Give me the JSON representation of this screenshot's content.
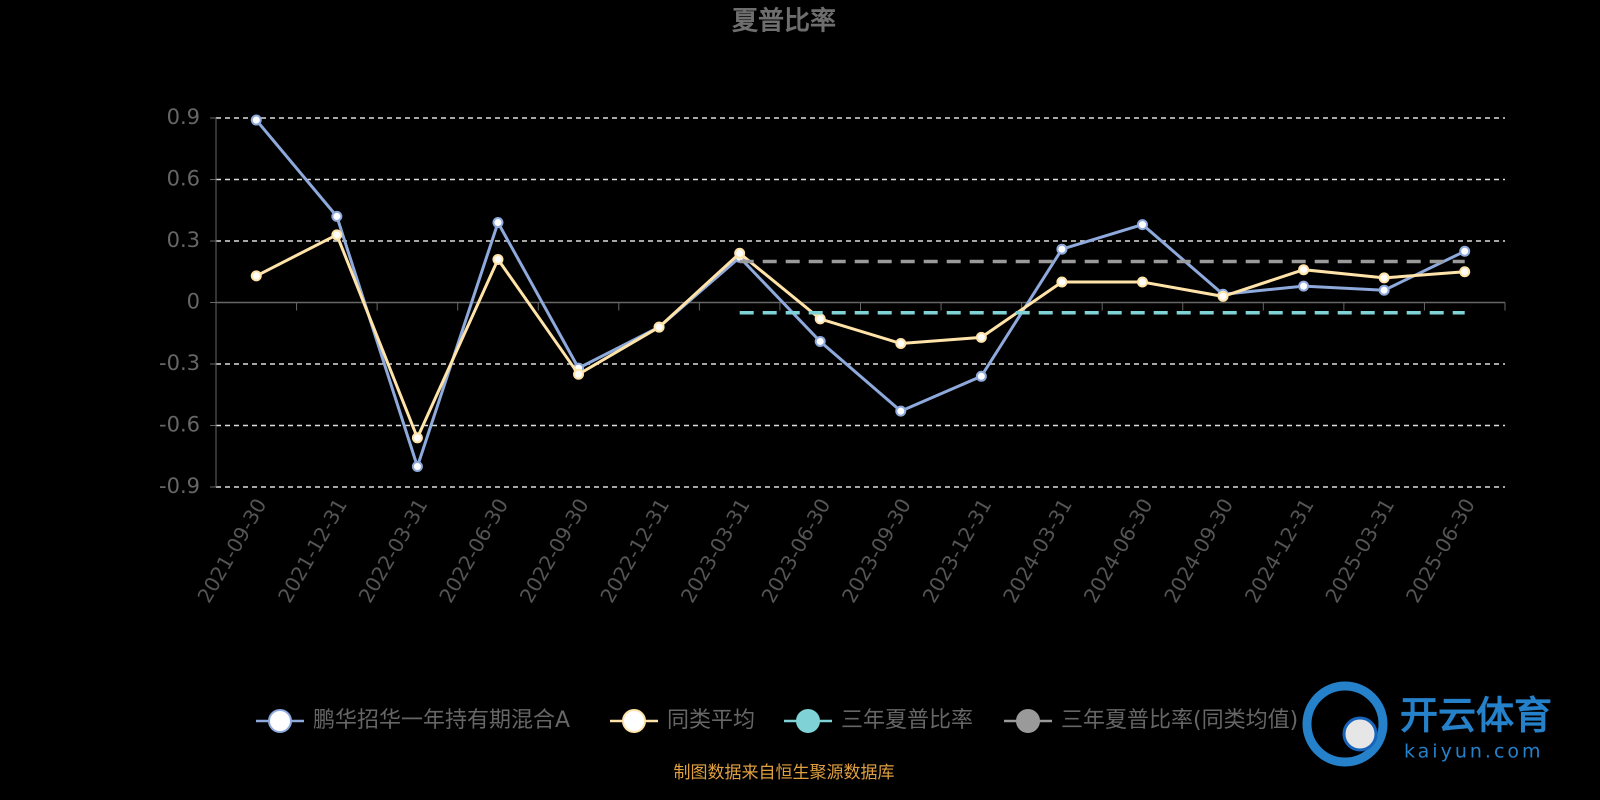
{
  "chart_data": {
    "type": "line",
    "title": "夏普比率",
    "categories": [
      "2021-09-30",
      "2021-12-31",
      "2022-03-31",
      "2022-06-30",
      "2022-09-30",
      "2022-12-31",
      "2023-03-31",
      "2023-06-30",
      "2023-09-30",
      "2023-12-31",
      "2024-03-31",
      "2024-06-30",
      "2024-09-30",
      "2024-12-31",
      "2025-03-31",
      "2025-06-30"
    ],
    "series": [
      {
        "name": "鹏华招华一年持有期混合A",
        "color": "#8ea9dc",
        "line_style": "solid",
        "markers": true,
        "values": [
          0.89,
          0.42,
          -0.8,
          0.39,
          -0.32,
          -0.12,
          0.22,
          -0.19,
          -0.53,
          -0.36,
          0.26,
          0.38,
          0.04,
          0.08,
          0.06,
          0.25
        ]
      },
      {
        "name": "同类平均",
        "color": "#ffe3a8",
        "line_style": "solid",
        "markers": true,
        "values": [
          0.13,
          0.33,
          -0.66,
          0.21,
          -0.35,
          -0.12,
          0.24,
          -0.08,
          -0.2,
          -0.17,
          0.1,
          0.1,
          0.03,
          0.16,
          0.12,
          0.15
        ]
      },
      {
        "name": "三年夏普比率",
        "color": "#7fd3d6",
        "line_style": "dashed",
        "markers": false,
        "values": [
          null,
          null,
          null,
          null,
          null,
          null,
          -0.05,
          -0.05,
          -0.05,
          -0.05,
          -0.05,
          -0.05,
          -0.05,
          -0.05,
          -0.05,
          -0.05
        ]
      },
      {
        "name": "三年夏普比率(同类均值)",
        "color": "#9a9a9a",
        "line_style": "dashed",
        "markers": false,
        "values": [
          null,
          null,
          null,
          null,
          null,
          null,
          0.2,
          0.2,
          0.2,
          0.2,
          0.2,
          0.2,
          0.2,
          0.2,
          0.2,
          0.2
        ]
      }
    ],
    "ylim": [
      -0.9,
      0.9
    ],
    "yticks": [
      0.9,
      0.6,
      0.3,
      0,
      -0.3,
      -0.6,
      -0.9
    ],
    "grid": true,
    "legend": "bottom",
    "source": "制图数据来自恒生聚源数据库"
  },
  "watermark": {
    "name": "开云体育",
    "url": "kaiyun.com"
  }
}
